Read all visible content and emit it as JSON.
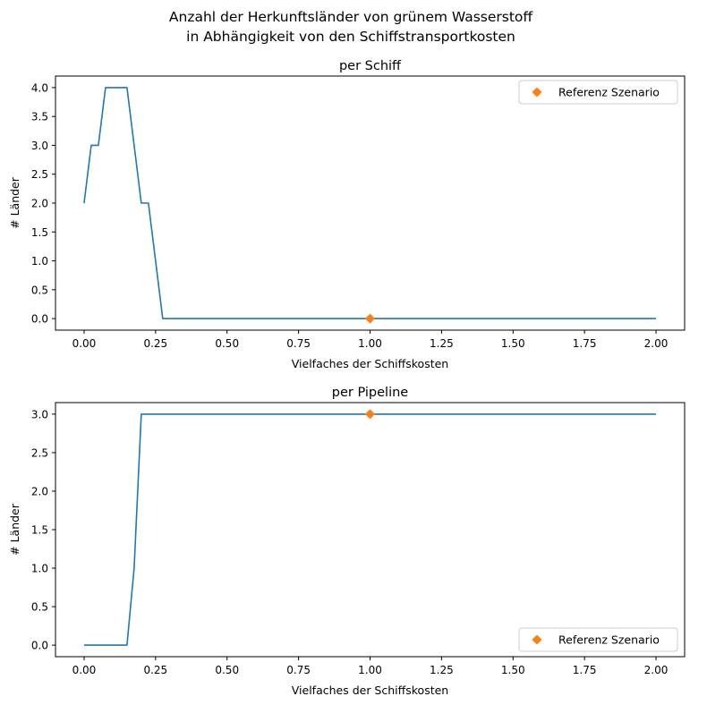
{
  "figure": {
    "title_line1": "Anzahl der Herkunftsländer von grünem Wasserstoff",
    "title_line2": "in Abhängigkeit von den Schiffstransportkosten"
  },
  "colors": {
    "series_line": "#1f77b4",
    "reference_marker": "#ff7f0e"
  },
  "chart_data": [
    {
      "type": "line",
      "title": "per Schiff",
      "xlabel": "Vielfaches der Schiffskosten",
      "ylabel": "# Länder",
      "xlim": [
        -0.1,
        2.1
      ],
      "ylim": [
        -0.2,
        4.2
      ],
      "xticks": [
        0.0,
        0.25,
        0.5,
        0.75,
        1.0,
        1.25,
        1.5,
        1.75,
        2.0
      ],
      "xtick_labels": [
        "0.00",
        "0.25",
        "0.50",
        "0.75",
        "1.00",
        "1.25",
        "1.50",
        "1.75",
        "2.00"
      ],
      "yticks": [
        0.0,
        0.5,
        1.0,
        1.5,
        2.0,
        2.5,
        3.0,
        3.5,
        4.0
      ],
      "ytick_labels": [
        "0.0",
        "0.5",
        "1.0",
        "1.5",
        "2.0",
        "2.5",
        "3.0",
        "3.5",
        "4.0"
      ],
      "grid": false,
      "legend_position": "top-right",
      "series": [
        {
          "x": [
            0.0,
            0.025,
            0.05,
            0.075,
            0.1,
            0.125,
            0.15,
            0.175,
            0.2,
            0.225,
            0.25,
            0.275,
            2.0
          ],
          "y": [
            2,
            3,
            3,
            4,
            4,
            4,
            4,
            3,
            2,
            2,
            1,
            0,
            0
          ]
        },
        {
          "name": "Referenz Szenario",
          "marker": "diamond",
          "x": [
            1.0
          ],
          "y": [
            0
          ]
        }
      ]
    },
    {
      "type": "line",
      "title": "per Pipeline",
      "xlabel": "Vielfaches der Schiffskosten",
      "ylabel": "# Länder",
      "xlim": [
        -0.1,
        2.1
      ],
      "ylim": [
        -0.15,
        3.15
      ],
      "xticks": [
        0.0,
        0.25,
        0.5,
        0.75,
        1.0,
        1.25,
        1.5,
        1.75,
        2.0
      ],
      "xtick_labels": [
        "0.00",
        "0.25",
        "0.50",
        "0.75",
        "1.00",
        "1.25",
        "1.50",
        "1.75",
        "2.00"
      ],
      "yticks": [
        0.0,
        0.5,
        1.0,
        1.5,
        2.0,
        2.5,
        3.0
      ],
      "ytick_labels": [
        "0.0",
        "0.5",
        "1.0",
        "1.5",
        "2.0",
        "2.5",
        "3.0"
      ],
      "grid": false,
      "legend_position": "bottom-right",
      "series": [
        {
          "x": [
            0.0,
            0.025,
            0.05,
            0.075,
            0.1,
            0.125,
            0.15,
            0.175,
            0.2,
            2.0
          ],
          "y": [
            0,
            0,
            0,
            0,
            0,
            0,
            0,
            1,
            3,
            3
          ]
        },
        {
          "name": "Referenz Szenario",
          "marker": "diamond",
          "x": [
            1.0
          ],
          "y": [
            3
          ]
        }
      ]
    }
  ]
}
